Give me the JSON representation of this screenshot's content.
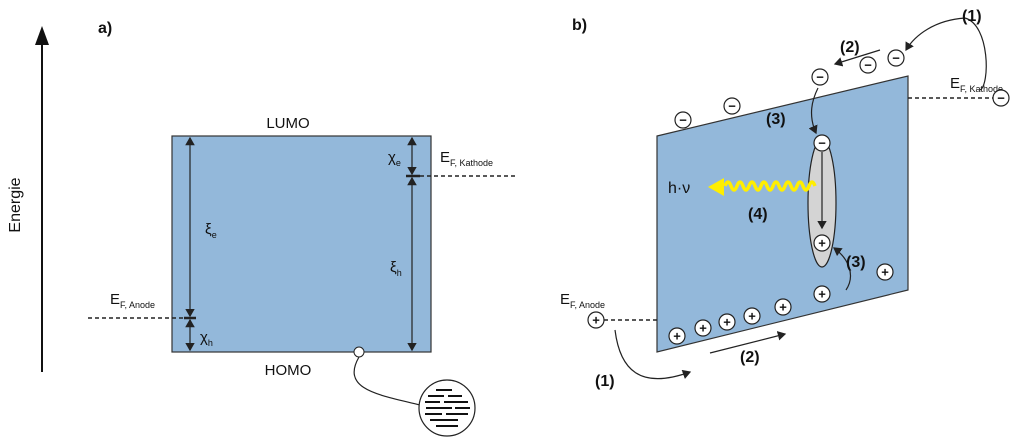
{
  "axis_label": "Energie",
  "panel_a": {
    "label": "a)",
    "lumo": "LUMO",
    "homo": "HOMO",
    "chi_e": {
      "symbol": "χ",
      "sub": "e"
    },
    "xi_e": {
      "symbol": "ξ",
      "sub": "e"
    },
    "xi_h": {
      "symbol": "ξ",
      "sub": "h"
    },
    "chi_h": {
      "symbol": "χ",
      "sub": "h"
    },
    "fermi_cathode": {
      "symbol": "E",
      "sub": "F, Kathode"
    },
    "fermi_anode": {
      "symbol": "E",
      "sub": "F, Anode"
    }
  },
  "panel_b": {
    "label": "b)",
    "photon": "h·ν",
    "electron": "−",
    "hole": "+",
    "step_labels": [
      "(1)",
      "(2)",
      "(3)",
      "(4)",
      "(3)",
      "(2)",
      "(1)"
    ],
    "fermi_cathode": {
      "symbol": "E",
      "sub": "F, Kathode"
    },
    "fermi_anode": {
      "symbol": "E",
      "sub": "F, Anode"
    }
  }
}
